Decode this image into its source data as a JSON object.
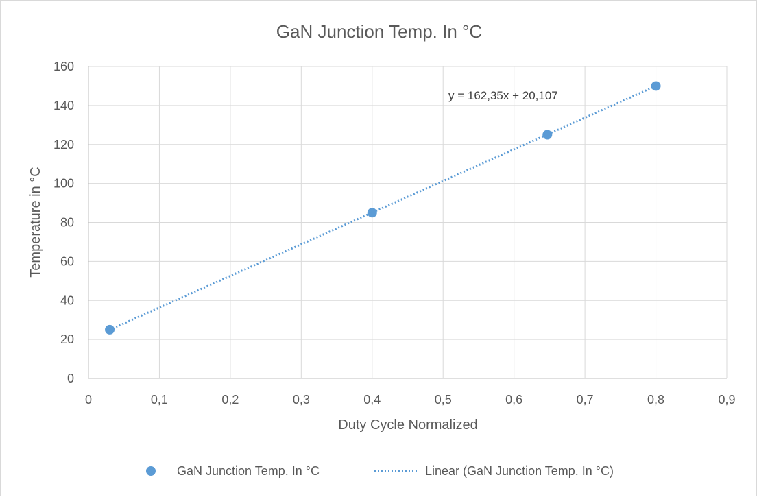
{
  "chart_data": {
    "type": "scatter",
    "title": "GaN Junction Temp. In °C",
    "xlabel": "Duty Cycle Normalized",
    "ylabel": "Temperature in °C",
    "xlim": [
      0,
      0.9
    ],
    "ylim": [
      0,
      160
    ],
    "x_tick_labels": [
      "0",
      "0,1",
      "0,2",
      "0,3",
      "0,4",
      "0,5",
      "0,6",
      "0,7",
      "0,8",
      "0,9"
    ],
    "y_tick_labels": [
      "0",
      "20",
      "40",
      "60",
      "80",
      "100",
      "120",
      "140",
      "160"
    ],
    "grid": true,
    "legend_position": "bottom",
    "series": [
      {
        "name": "GaN Junction Temp. In °C",
        "color": "#5b9bd5",
        "marker": "circle",
        "x": [
          0.03,
          0.4,
          0.647,
          0.8
        ],
        "y": [
          25,
          85,
          125,
          150
        ]
      }
    ],
    "trendline": {
      "name": "Linear (GaN Junction Temp. In °C)",
      "type": "linear",
      "style": "dotted",
      "color": "#5b9bd5",
      "slope": 162.35,
      "intercept": 20.107,
      "equation_label": "y = 162,35x + 20,107"
    }
  }
}
